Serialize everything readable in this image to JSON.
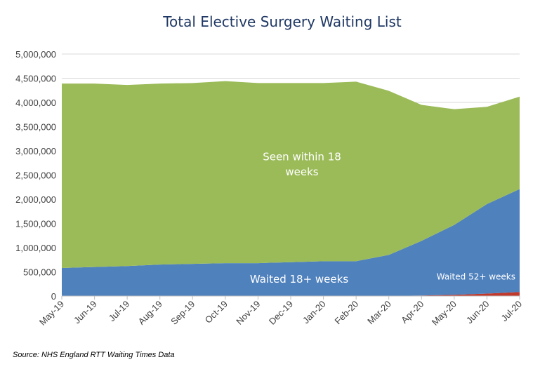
{
  "chart_data": {
    "type": "area",
    "stacked": true,
    "title": "Total Elective Surgery Waiting List",
    "source": "Source: NHS England RTT Waiting Times Data",
    "categories": [
      "May-19",
      "Jun-19",
      "Jul-19",
      "Aug-19",
      "Sep-19",
      "Oct-19",
      "Nov-19",
      "Dec-19",
      "Jan-20",
      "Feb-20",
      "Mar-20",
      "Apr-20",
      "May-20",
      "Jun-20",
      "Jul-20"
    ],
    "yticks": [
      "0",
      "500,000",
      "1,000,000",
      "1,500,000",
      "2,000,000",
      "2,500,000",
      "3,000,000",
      "3,500,000",
      "4,000,000",
      "4,500,000",
      "5,000,000"
    ],
    "ylim": [
      0,
      5000000
    ],
    "grid": true,
    "legend": "none",
    "series": [
      {
        "name": "Waited 52+ weeks",
        "color": "#c0392b",
        "values": [
          1500,
          1500,
          1500,
          1500,
          1500,
          1500,
          1500,
          1500,
          1500,
          1500,
          2000,
          11000,
          26000,
          50000,
          83000
        ]
      },
      {
        "name": "Waited 18+ weeks",
        "color": "#4f81bd",
        "values": [
          578500,
          598500,
          618500,
          648500,
          663500,
          678500,
          678500,
          698500,
          718500,
          718500,
          848000,
          1129000,
          1444000,
          1850000,
          2127000
        ]
      },
      {
        "name": "Seen within 18 weeks",
        "color": "#9bbb59",
        "values": [
          3810000,
          3790000,
          3740000,
          3740000,
          3735000,
          3760000,
          3720000,
          3700000,
          3680000,
          3710000,
          3390000,
          2810000,
          2390000,
          2010000,
          1910000
        ]
      }
    ],
    "annotations": [
      {
        "series": "Seen within 18 weeks",
        "lines": [
          "Seen within 18",
          "weeks"
        ]
      },
      {
        "series": "Waited 18+ weeks",
        "lines": [
          "Waited 18+ weeks"
        ]
      },
      {
        "series": "Waited 52+ weeks",
        "lines": [
          "Waited 52+ weeks"
        ]
      }
    ]
  }
}
